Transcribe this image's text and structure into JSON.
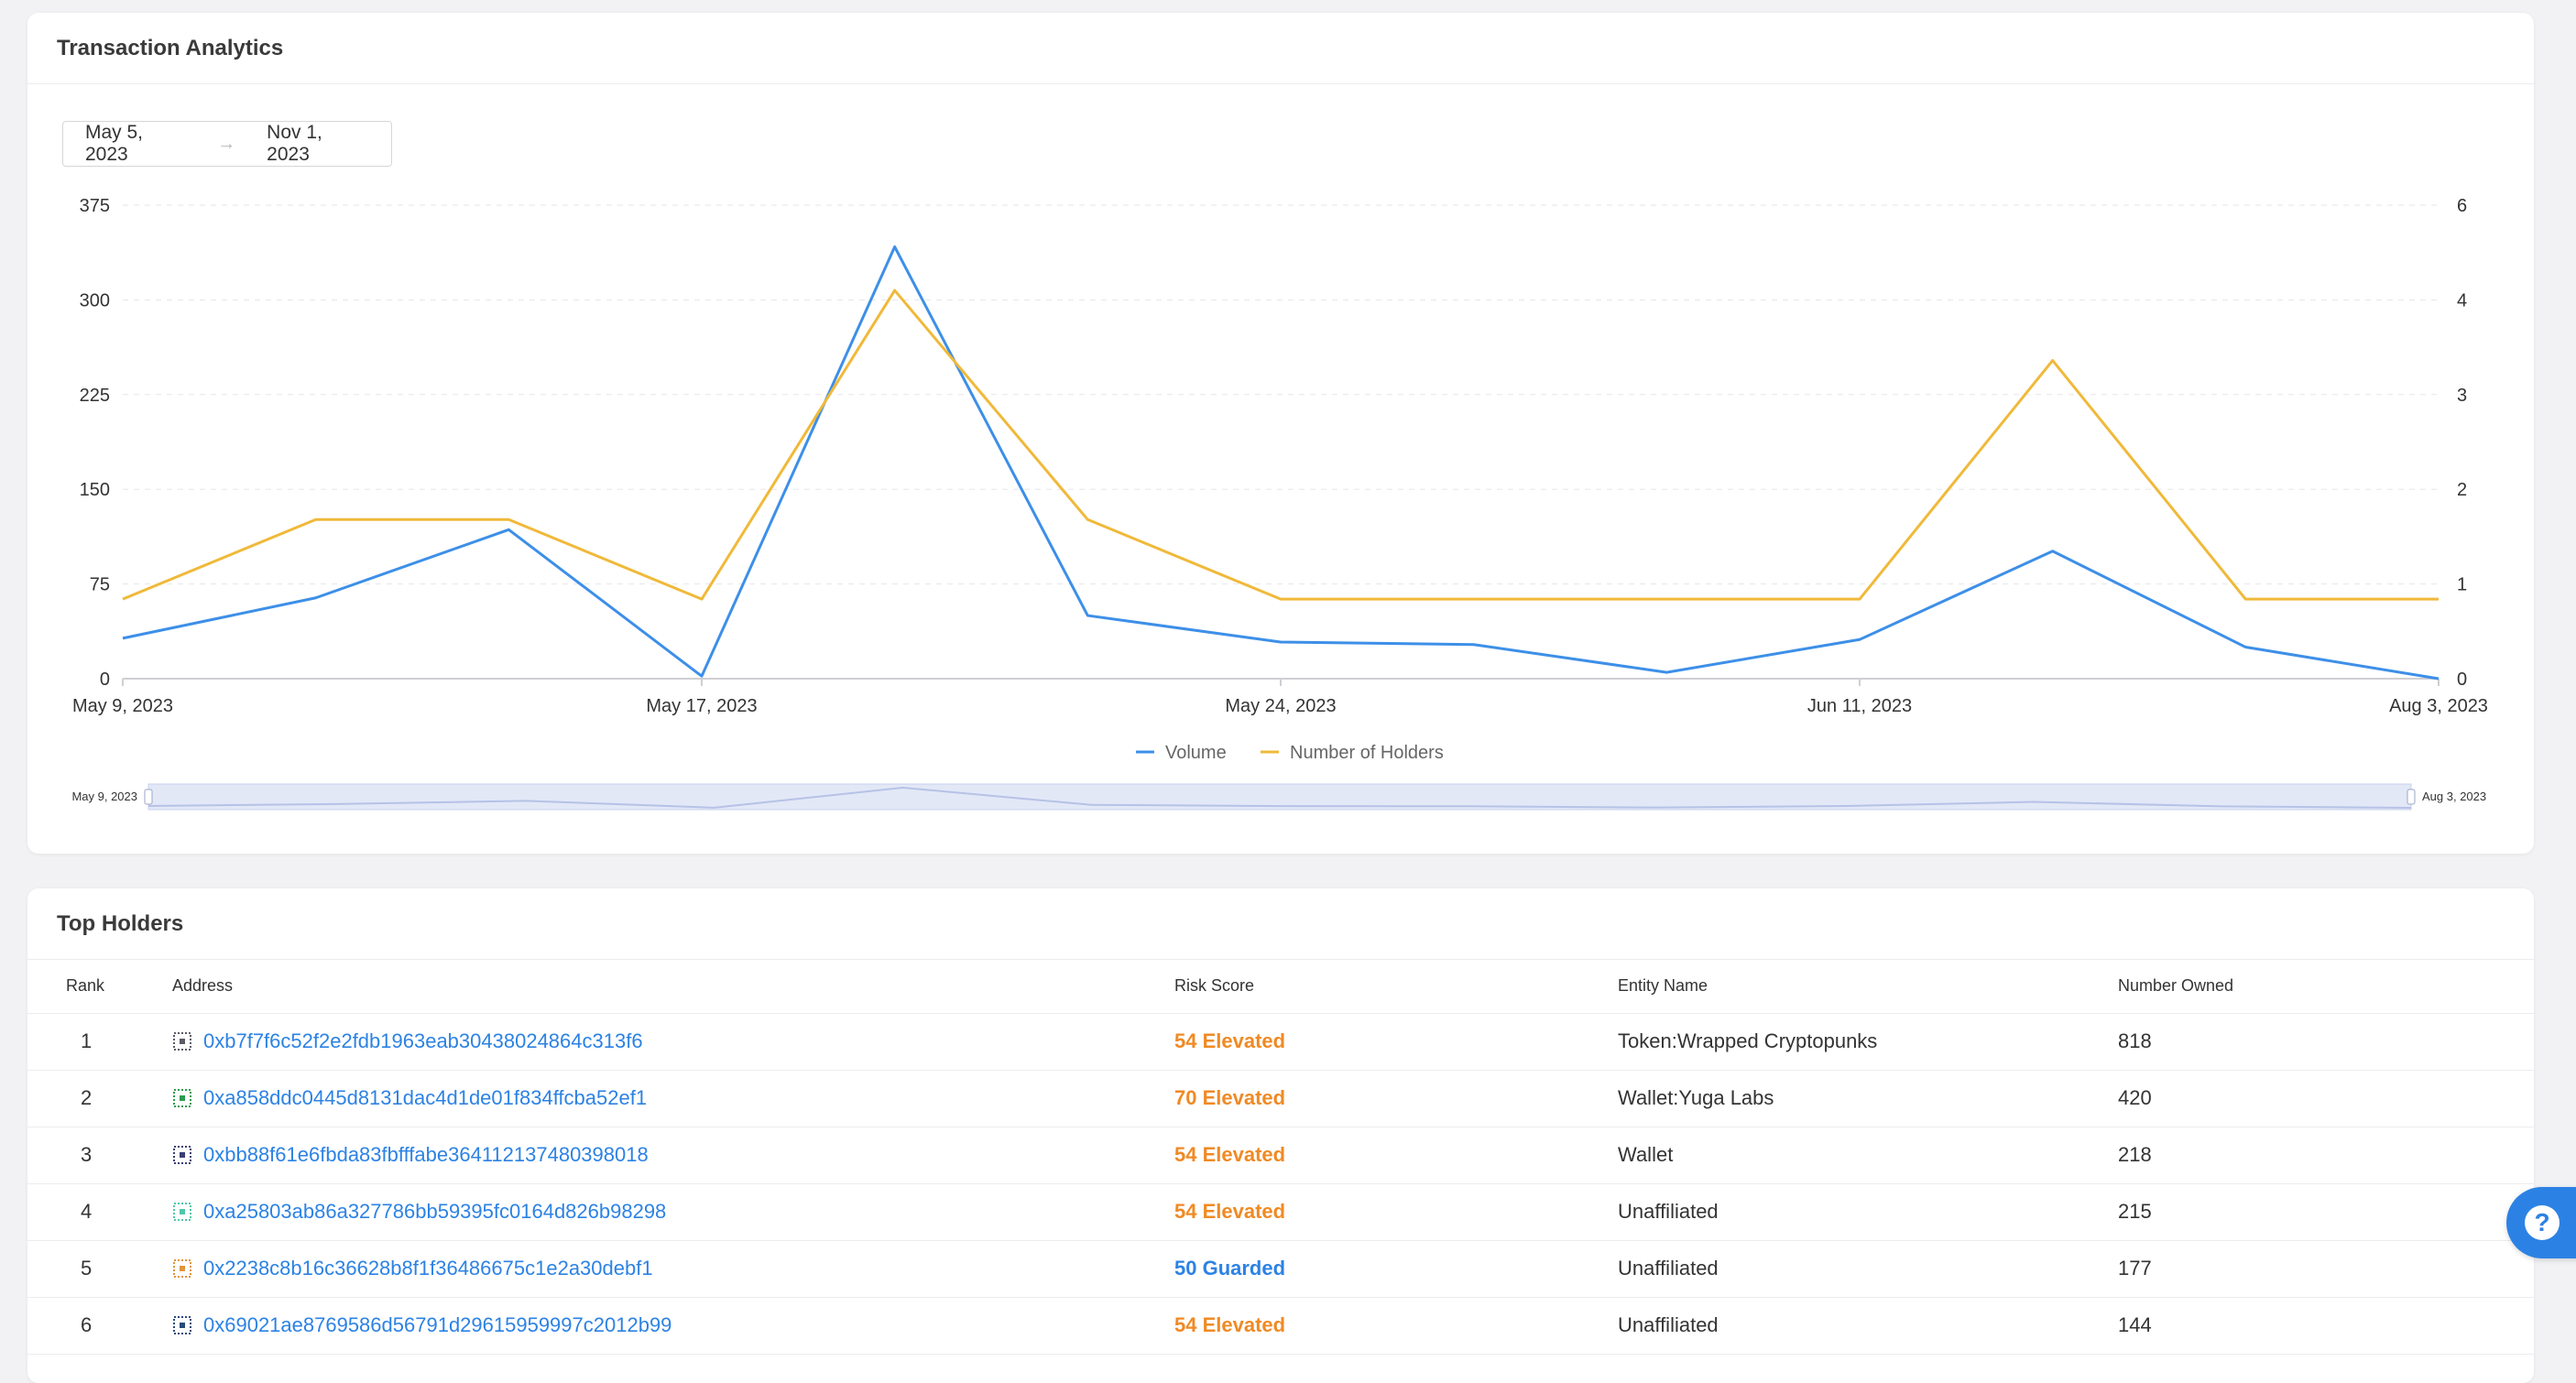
{
  "analytics": {
    "title": "Transaction Analytics",
    "date_start": "May 5, 2023",
    "date_arrow": "→",
    "date_end": "Nov 1, 2023"
  },
  "chart_data": {
    "type": "line",
    "x": [
      "May 9, 2023",
      "May 12, 2023",
      "May 15, 2023",
      "May 17, 2023",
      "May 19, 2023",
      "May 21, 2023",
      "May 24, 2023",
      "May 28, 2023",
      "Jun 2, 2023",
      "Jun 11, 2023",
      "Jun 25, 2023",
      "Jul 10, 2023",
      "Aug 3, 2023"
    ],
    "x_tick_labels": [
      "May 9, 2023",
      "May 17, 2023",
      "May 24, 2023",
      "Jun 11, 2023",
      "Aug 3, 2023"
    ],
    "x_tick_indices": [
      0,
      3,
      6,
      9,
      12
    ],
    "series": [
      {
        "name": "Volume",
        "axis": "left",
        "color": "#3d8fe8",
        "values": [
          32,
          64,
          118,
          2,
          342,
          50,
          29,
          27,
          5,
          31,
          101,
          25,
          0
        ]
      },
      {
        "name": "Number of Holders",
        "axis": "right",
        "color": "#f0b93a",
        "values": [
          1,
          2,
          2,
          1,
          5,
          2,
          1,
          1,
          1,
          1,
          4,
          1,
          1
        ]
      }
    ],
    "y_left": {
      "ticks": [
        0,
        75,
        150,
        225,
        300,
        375
      ],
      "ylim": [
        0,
        375
      ]
    },
    "y_right": {
      "ticks": [
        0,
        1,
        2,
        3,
        4,
        6
      ],
      "ylim": [
        0,
        6
      ]
    },
    "legend_position": "bottom-center",
    "grid": true,
    "slider": {
      "start_label": "May 9, 2023",
      "end_label": "Aug 3, 2023"
    }
  },
  "holders": {
    "title": "Top Holders",
    "columns": {
      "rank": "Rank",
      "address": "Address",
      "risk": "Risk Score",
      "entity": "Entity Name",
      "owned": "Number Owned"
    },
    "rows": [
      {
        "rank": "1",
        "address": "0xb7f7f6c52f2e2fdb1963eab30438024864c313f6",
        "risk": "54 Elevated",
        "risk_level": "elevated",
        "entity": "Token:Wrapped Cryptopunks",
        "owned": "818",
        "icon": "identicon-dotted-square-icon",
        "icon_color": "#5b5b66"
      },
      {
        "rank": "2",
        "address": "0xa858ddc0445d8131dac4d1de01f834ffcba52ef1",
        "risk": "70 Elevated",
        "risk_level": "elevated",
        "entity": "Wallet:Yuga Labs",
        "owned": "420",
        "icon": "identicon-ring-icon",
        "icon_color": "#2d9b4f"
      },
      {
        "rank": "3",
        "address": "0xbb88f61e6fbda83fbfffabe364112137480398018",
        "risk": "54 Elevated",
        "risk_level": "elevated",
        "entity": "Wallet",
        "owned": "218",
        "icon": "identicon-cross-icon",
        "icon_color": "#3b3f74"
      },
      {
        "rank": "4",
        "address": "0xa25803ab86a327786bb59395fc0164d826b98298",
        "risk": "54 Elevated",
        "risk_level": "elevated",
        "entity": "Unaffiliated",
        "owned": "215",
        "icon": "identicon-grid-icon",
        "icon_color": "#4fc7a8"
      },
      {
        "rank": "5",
        "address": "0x2238c8b16c36628b8f1f36486675c1e2a30debf1",
        "risk": "50 Guarded",
        "risk_level": "guarded",
        "entity": "Unaffiliated",
        "owned": "177",
        "icon": "identicon-frame-icon",
        "icon_color": "#e0953a"
      },
      {
        "rank": "6",
        "address": "0x69021ae8769586d56791d29615959997c2012b99",
        "risk": "54 Elevated",
        "risk_level": "elevated",
        "entity": "Unaffiliated",
        "owned": "144",
        "icon": "identicon-target-icon",
        "icon_color": "#2b4a7a"
      }
    ]
  },
  "help": {
    "label": "?"
  }
}
